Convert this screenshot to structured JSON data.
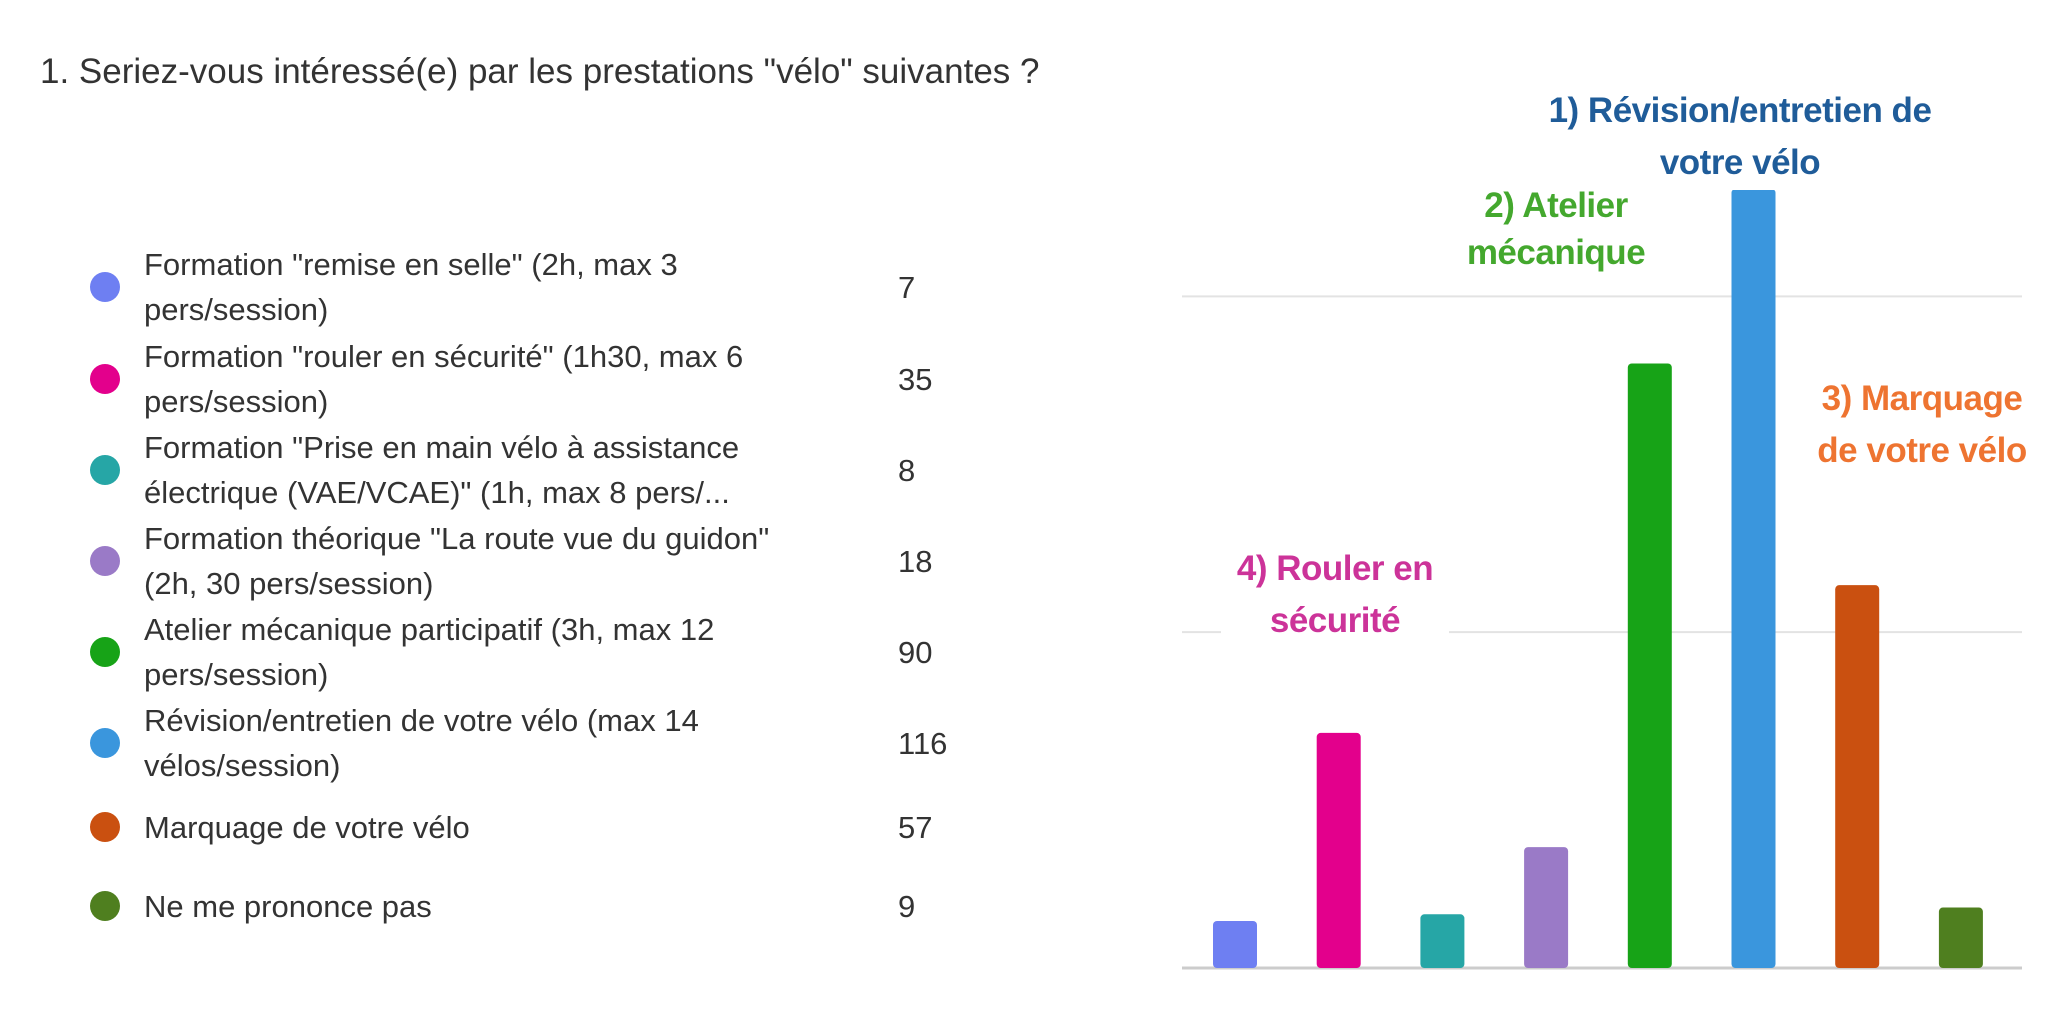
{
  "question": "1. Seriez-vous intéressé(e) par les prestations \"vélo\" suivantes ?",
  "chart_data": {
    "type": "bar",
    "categories": [
      "Formation \"remise en selle\" (2h, max 3 pers/session)",
      "Formation \"rouler en sécurité\"  (1h30, max 6 pers/session)",
      "Formation \"Prise en main vélo à assistance électrique (VAE/VCAE)\"  (1h, max 8 pers/...",
      "Formation théorique \"La route vue du guidon\" (2h, 30 pers/session)",
      "Atelier mécanique participatif  (3h, max 12 pers/session)",
      "Révision/entretien de votre vélo (max 14 vélos/session)",
      "Marquage de votre vélo",
      "Ne me prononce pas"
    ],
    "values": [
      7,
      35,
      8,
      18,
      90,
      116,
      57,
      9
    ],
    "colors": [
      "#6e7ff2",
      "#e3008c",
      "#26a6a6",
      "#9a7ac7",
      "#17a317",
      "#3a96dd",
      "#ca5010",
      "#4f7f1f"
    ],
    "ylim": [
      0,
      120
    ],
    "grid": true,
    "legend": "left",
    "annotations": [
      {
        "lines": [
          "1) Révision/entretien de",
          "votre vélo"
        ],
        "color": "#1f5c99",
        "category_index": 5
      },
      {
        "lines": [
          "2) Atelier",
          "mécanique"
        ],
        "color": "#44a82e",
        "category_index": 4
      },
      {
        "lines": [
          "3) Marquage",
          "de votre vélo"
        ],
        "color": "#ee7431",
        "category_index": 6
      },
      {
        "lines": [
          "4) Rouler en",
          "sécurité"
        ],
        "color": "#cc3399",
        "category_index": 1
      }
    ]
  }
}
